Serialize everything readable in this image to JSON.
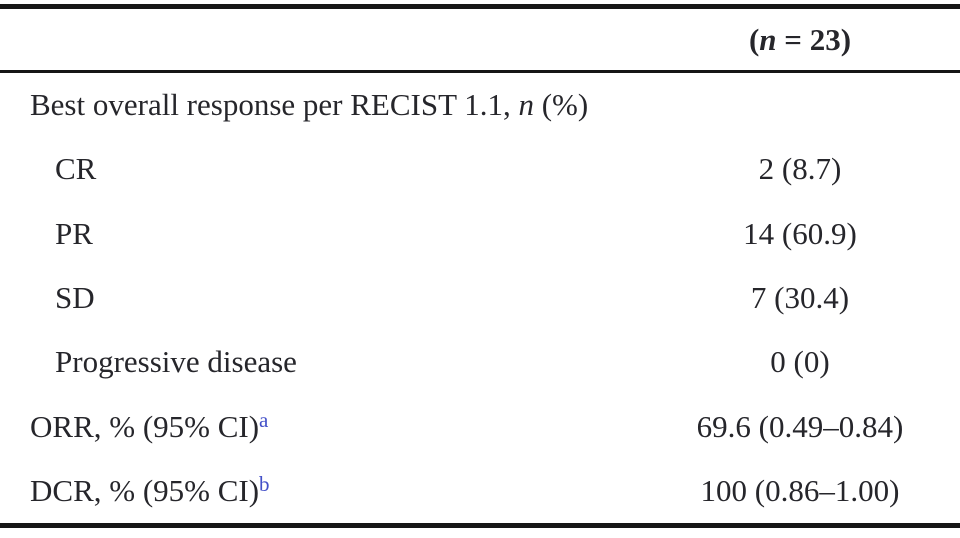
{
  "colors": {
    "text": "#26262b",
    "rule": "#161616",
    "superscript_link": "#4350c8",
    "background": "#ffffff"
  },
  "table": {
    "header": {
      "pre": "(",
      "italic": "n",
      "post": " = 23)"
    },
    "rows": [
      {
        "label_pre": "Best overall response per RECIST 1.1, ",
        "label_italic": "n",
        "label_post": " (%)",
        "value": ""
      },
      {
        "label_pre": "CR",
        "value": "2 (8.7)"
      },
      {
        "label_pre": "PR",
        "value": "14 (60.9)"
      },
      {
        "label_pre": "SD",
        "value": "7 (30.4)"
      },
      {
        "label_pre": "Progressive disease",
        "value": "0 (0)"
      },
      {
        "label_pre": "ORR, % (95% CI)",
        "label_sup": "a",
        "value": "69.6 (0.49–0.84)"
      },
      {
        "label_pre": "DCR, % (95% CI)",
        "label_sup": "b",
        "value": "100 (0.86–1.00)"
      }
    ]
  }
}
